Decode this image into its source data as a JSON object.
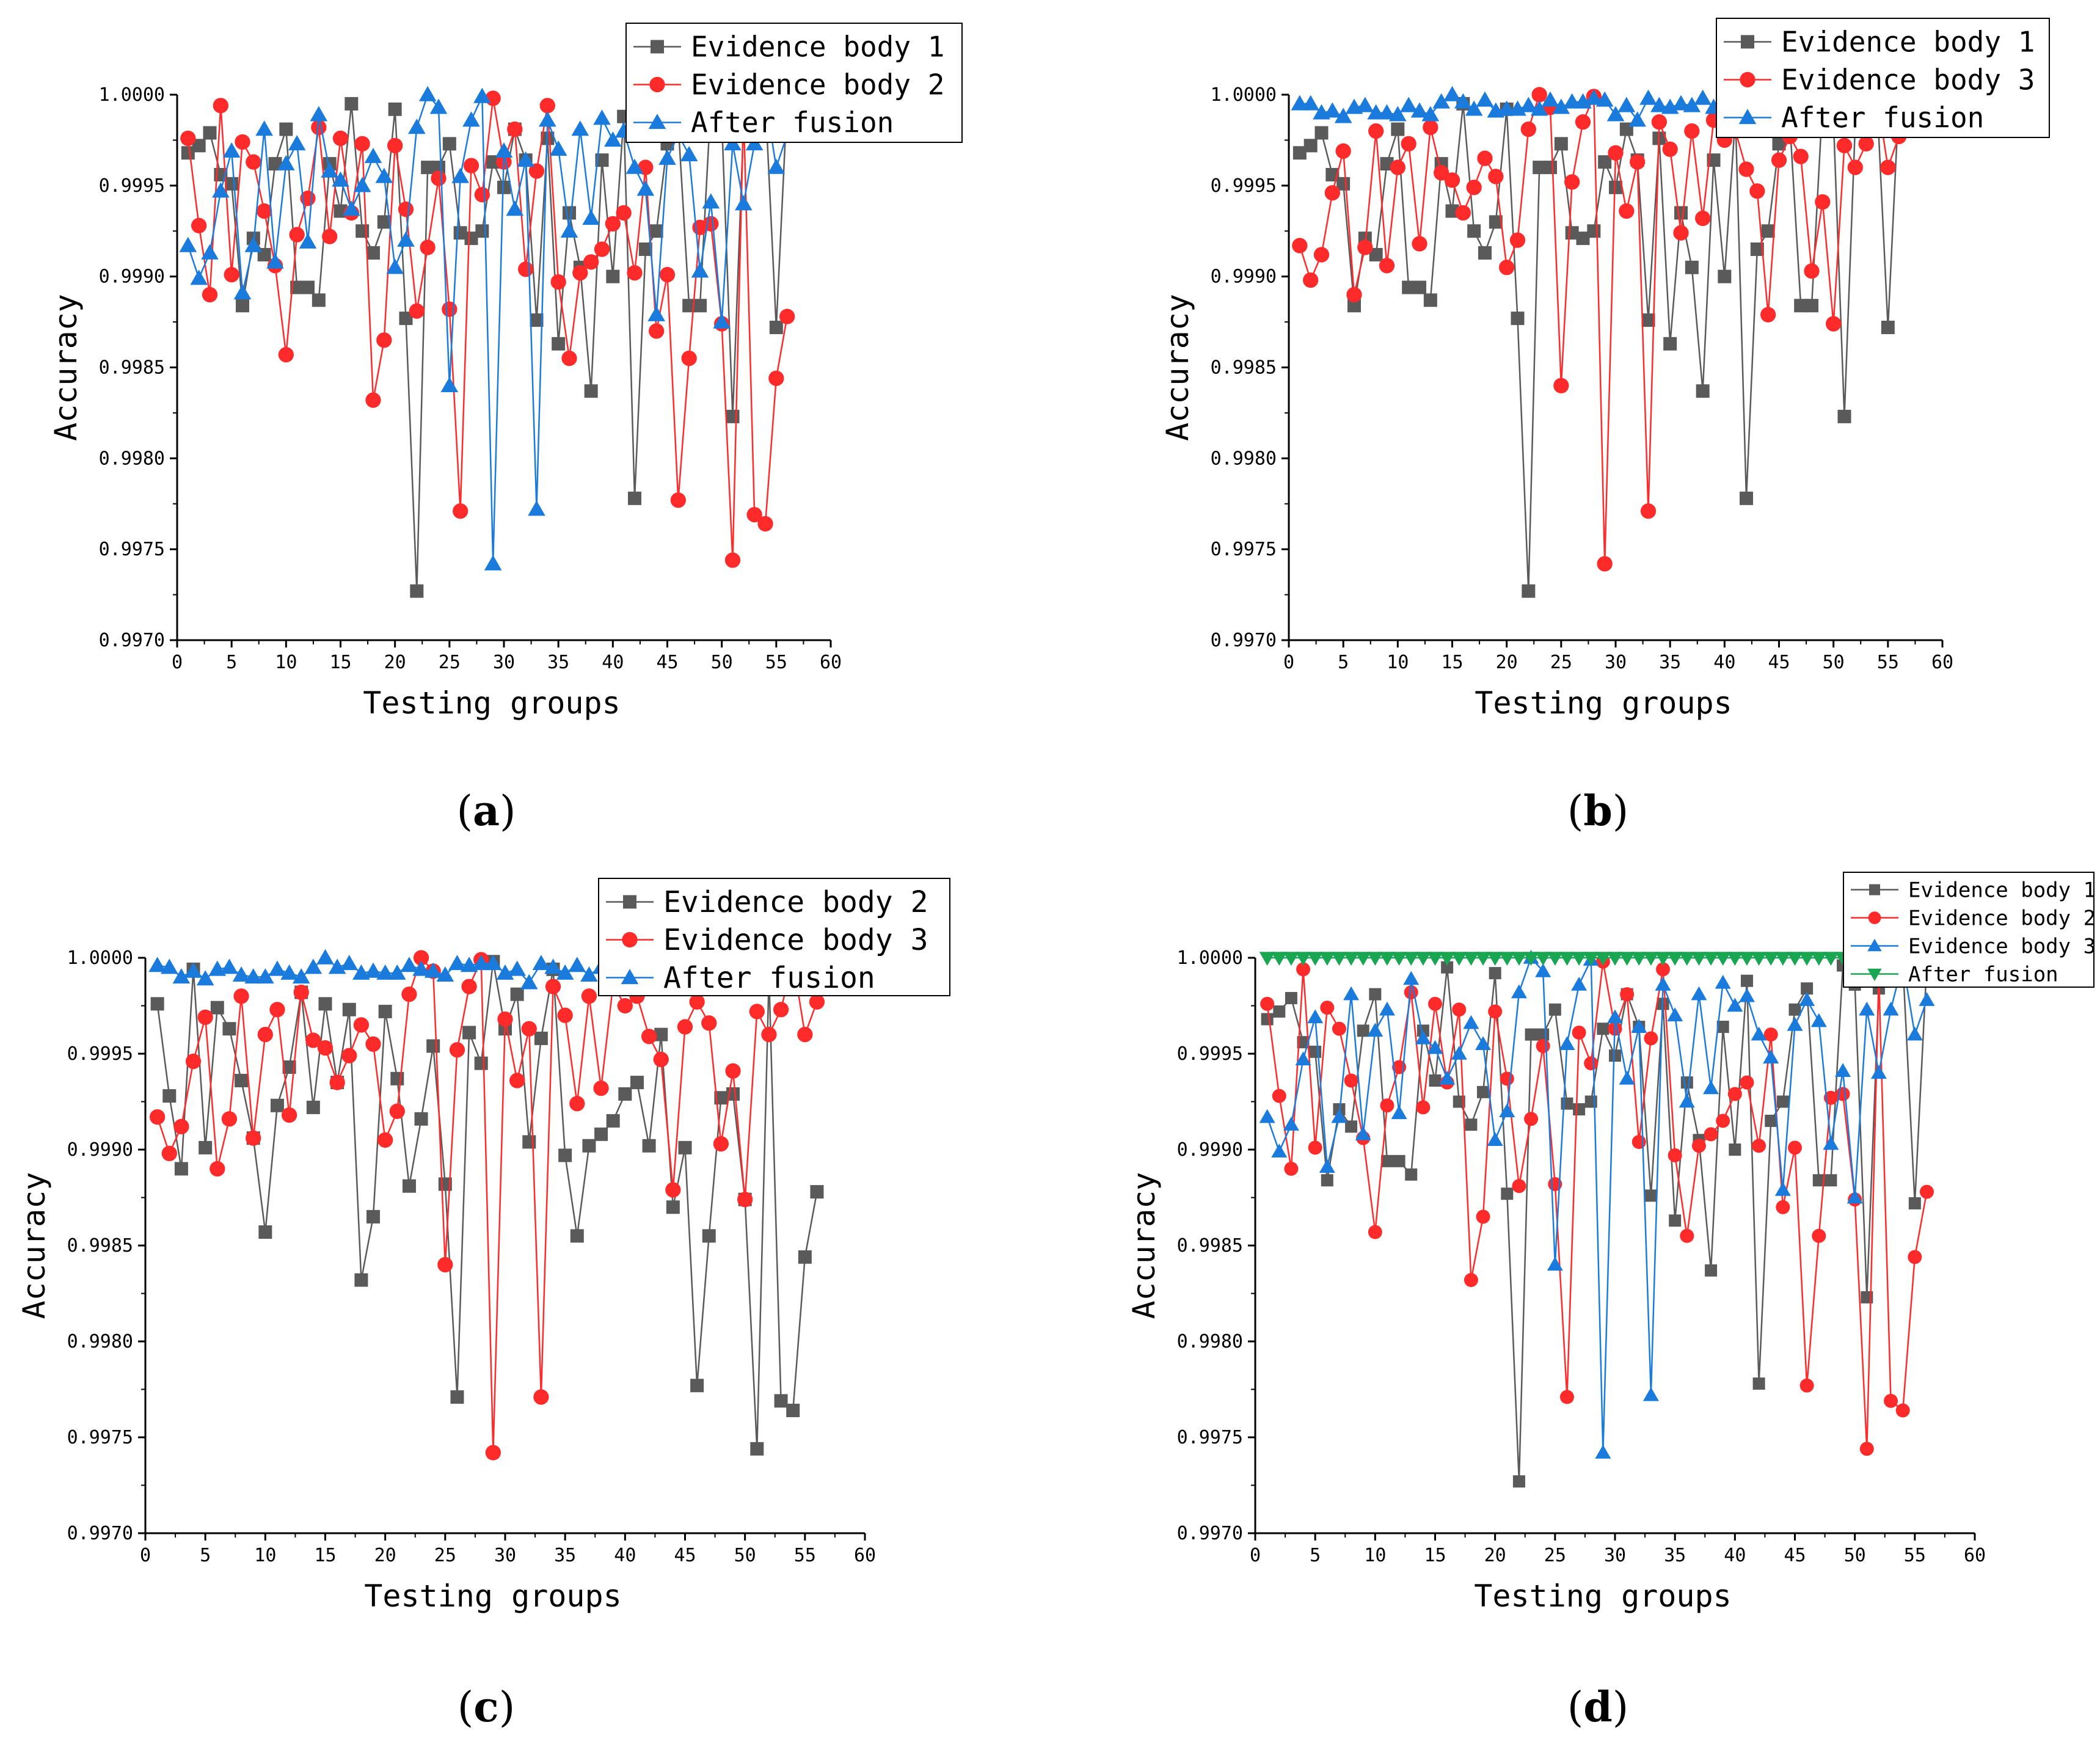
{
  "colors": {
    "gray": "#5a5a5a",
    "red": "#ff2a2a",
    "blue": "#1a7bdc",
    "green": "#1aa552",
    "axis": "#000000"
  },
  "captions": [
    "a",
    "b",
    "c",
    "d"
  ],
  "chart_data": [
    {
      "type": "line",
      "panel": "a",
      "xlabel": "Testing groups",
      "ylabel": "Accuracy",
      "xlim": [
        0,
        60
      ],
      "ylim": [
        0.997,
        1.0
      ],
      "xticks": [
        0,
        5,
        10,
        15,
        20,
        25,
        30,
        35,
        40,
        45,
        50,
        55,
        60
      ],
      "yticks": [
        "0.9970",
        "0.9975",
        "0.9980",
        "0.9985",
        "0.9990",
        "0.9995",
        "1.0000"
      ],
      "legend_position": "top-right",
      "series": [
        {
          "name": "Evidence body 1",
          "marker": "square",
          "color": "gray",
          "values": [
            0.99968,
            0.99972,
            0.99979,
            0.99956,
            0.99951,
            0.99884,
            0.99921,
            0.99912,
            0.99962,
            0.99981,
            0.99894,
            0.99894,
            0.99887,
            0.99962,
            0.99936,
            0.99995,
            0.99925,
            0.99913,
            0.9993,
            0.99992,
            0.99877,
            0.99727,
            0.9996,
            0.9996,
            0.99973,
            0.99924,
            0.99921,
            0.99925,
            0.99963,
            0.99949,
            0.99981,
            0.99964,
            0.99876,
            0.99976,
            0.99863,
            0.99935,
            0.99905,
            0.99837,
            0.99964,
            0.999,
            0.99988,
            0.99778,
            0.99915,
            0.99925,
            0.99973,
            0.99984,
            0.99884,
            0.99884,
            0.99996,
            0.99986,
            0.99823,
            0.99984,
            0.99996,
            0.99997,
            0.99872,
            0.99997
          ]
        },
        {
          "name": "Evidence body 2",
          "marker": "circle",
          "color": "red",
          "values": [
            0.99976,
            0.99928,
            0.9989,
            0.99994,
            0.99901,
            0.99974,
            0.99963,
            0.99936,
            0.99906,
            0.99857,
            0.99923,
            0.99943,
            0.99982,
            0.99922,
            0.99976,
            0.99935,
            0.99973,
            0.99832,
            0.99865,
            0.99972,
            0.99937,
            0.99881,
            0.99916,
            0.99954,
            0.99882,
            0.99771,
            0.99961,
            0.99945,
            0.99998,
            0.99963,
            0.99981,
            0.99904,
            0.99958,
            0.99994,
            0.99897,
            0.99855,
            0.99902,
            0.99908,
            0.99915,
            0.99929,
            0.99935,
            0.99902,
            0.9996,
            0.9987,
            0.99901,
            0.99777,
            0.99855,
            0.99927,
            0.99929,
            0.99874,
            0.99744,
            0.99991,
            0.99769,
            0.99764,
            0.99844,
            0.99878
          ]
        },
        {
          "name": "After fusion",
          "marker": "triangle",
          "color": "blue",
          "values": [
            0.99917,
            0.99899,
            0.99913,
            0.99947,
            0.99969,
            0.99891,
            0.99917,
            0.99981,
            0.99908,
            0.99962,
            0.99973,
            0.99919,
            0.99989,
            0.99958,
            0.99953,
            0.99937,
            0.9995,
            0.99966,
            0.99955,
            0.99905,
            0.9992,
            0.99982,
            1.0,
            0.99993,
            0.9984,
            0.99955,
            0.99986,
            0.99999,
            0.99742,
            0.99969,
            0.99937,
            0.99964,
            0.99772,
            0.99986,
            0.9997,
            0.99925,
            0.99981,
            0.99932,
            0.99987,
            0.99975,
            0.9998,
            0.9996,
            0.99948,
            0.99879,
            0.99965,
            0.99978,
            0.99967,
            0.99903,
            0.99941,
            0.99875,
            0.99973,
            0.9994,
            0.99973,
            0.99998,
            0.9996,
            0.99978
          ]
        }
      ]
    },
    {
      "type": "line",
      "panel": "b",
      "xlabel": "Testing groups",
      "ylabel": "Accuracy",
      "xlim": [
        0,
        60
      ],
      "ylim": [
        0.997,
        1.0
      ],
      "xticks": [
        0,
        5,
        10,
        15,
        20,
        25,
        30,
        35,
        40,
        45,
        50,
        55,
        60
      ],
      "yticks": [
        "0.9970",
        "0.9975",
        "0.9980",
        "0.9985",
        "0.9990",
        "0.9995",
        "1.0000"
      ],
      "legend_position": "top-right",
      "series": [
        {
          "name": "Evidence body 1",
          "marker": "square",
          "color": "gray",
          "values": [
            0.99968,
            0.99972,
            0.99979,
            0.99956,
            0.99951,
            0.99884,
            0.99921,
            0.99912,
            0.99962,
            0.99981,
            0.99894,
            0.99894,
            0.99887,
            0.99962,
            0.99936,
            0.99995,
            0.99925,
            0.99913,
            0.9993,
            0.99992,
            0.99877,
            0.99727,
            0.9996,
            0.9996,
            0.99973,
            0.99924,
            0.99921,
            0.99925,
            0.99963,
            0.99949,
            0.99981,
            0.99964,
            0.99876,
            0.99976,
            0.99863,
            0.99935,
            0.99905,
            0.99837,
            0.99964,
            0.999,
            0.99988,
            0.99778,
            0.99915,
            0.99925,
            0.99973,
            0.99984,
            0.99884,
            0.99884,
            0.99996,
            0.99986,
            0.99823,
            0.99984,
            0.99996,
            0.99997,
            0.99872,
            0.99997
          ]
        },
        {
          "name": "Evidence body 3",
          "marker": "circle",
          "color": "red",
          "values": [
            0.99917,
            0.99898,
            0.99912,
            0.99946,
            0.99969,
            0.9989,
            0.99916,
            0.9998,
            0.99906,
            0.9996,
            0.99973,
            0.99918,
            0.99982,
            0.99957,
            0.99953,
            0.99935,
            0.99949,
            0.99965,
            0.99955,
            0.99905,
            0.9992,
            0.99981,
            1.0,
            0.99993,
            0.9984,
            0.99952,
            0.99985,
            0.99999,
            0.99742,
            0.99968,
            0.99936,
            0.99963,
            0.99771,
            0.99985,
            0.9997,
            0.99924,
            0.9998,
            0.99932,
            0.99986,
            0.99975,
            0.9998,
            0.99959,
            0.99947,
            0.99879,
            0.99964,
            0.99977,
            0.99966,
            0.99903,
            0.99941,
            0.99874,
            0.99972,
            0.9996,
            0.99973,
            0.99999,
            0.9996,
            0.99977
          ]
        },
        {
          "name": "After fusion",
          "marker": "triangle",
          "color": "blue",
          "values": [
            0.99995,
            0.99995,
            0.9999,
            0.99991,
            0.99988,
            0.99993,
            0.99994,
            0.9999,
            0.9999,
            0.99989,
            0.99994,
            0.99991,
            0.99989,
            0.99996,
            1.0,
            0.99996,
            0.99992,
            0.99997,
            0.99991,
            0.99992,
            0.99992,
            0.99994,
            0.99992,
            0.99997,
            0.99993,
            0.99996,
            0.99996,
            0.99998,
            0.99997,
            0.99989,
            0.99994,
            0.99986,
            0.99998,
            0.99994,
            0.99993,
            0.99995,
            0.99994,
            0.99998,
            0.99993,
            0.99992,
            0.99995,
            0.99993,
            0.99994,
            0.99991,
            0.99993,
            0.99996,
            0.99995,
            0.99993,
            0.99995,
            0.99999,
            0.99992,
            0.99995,
            0.99993,
            0.99995,
            0.99993,
            0.9999
          ]
        }
      ]
    },
    {
      "type": "line",
      "panel": "c",
      "xlabel": "Testing groups",
      "ylabel": "Accuracy",
      "xlim": [
        0,
        60
      ],
      "ylim": [
        0.997,
        1.0
      ],
      "xticks": [
        0,
        5,
        10,
        15,
        20,
        25,
        30,
        35,
        40,
        45,
        50,
        55,
        60
      ],
      "yticks": [
        "0.9970",
        "0.9975",
        "0.9980",
        "0.9985",
        "0.9990",
        "0.9995",
        "1.0000"
      ],
      "legend_position": "top-right",
      "series": [
        {
          "name": "Evidence body 2",
          "marker": "square",
          "color": "gray",
          "values": [
            0.99976,
            0.99928,
            0.9989,
            0.99994,
            0.99901,
            0.99974,
            0.99963,
            0.99936,
            0.99906,
            0.99857,
            0.99923,
            0.99943,
            0.99982,
            0.99922,
            0.99976,
            0.99935,
            0.99973,
            0.99832,
            0.99865,
            0.99972,
            0.99937,
            0.99881,
            0.99916,
            0.99954,
            0.99882,
            0.99771,
            0.99961,
            0.99945,
            0.99998,
            0.99963,
            0.99981,
            0.99904,
            0.99958,
            0.99994,
            0.99897,
            0.99855,
            0.99902,
            0.99908,
            0.99915,
            0.99929,
            0.99935,
            0.99902,
            0.9996,
            0.9987,
            0.99901,
            0.99777,
            0.99855,
            0.99927,
            0.99929,
            0.99874,
            0.99744,
            0.99991,
            0.99769,
            0.99764,
            0.99844,
            0.99878
          ]
        },
        {
          "name": "Evidence body 3",
          "marker": "circle",
          "color": "red",
          "values": [
            0.99917,
            0.99898,
            0.99912,
            0.99946,
            0.99969,
            0.9989,
            0.99916,
            0.9998,
            0.99906,
            0.9996,
            0.99973,
            0.99918,
            0.99982,
            0.99957,
            0.99953,
            0.99935,
            0.99949,
            0.99965,
            0.99955,
            0.99905,
            0.9992,
            0.99981,
            1.0,
            0.99993,
            0.9984,
            0.99952,
            0.99985,
            0.99999,
            0.99742,
            0.99968,
            0.99936,
            0.99963,
            0.99771,
            0.99985,
            0.9997,
            0.99924,
            0.9998,
            0.99932,
            0.99986,
            0.99975,
            0.9998,
            0.99959,
            0.99947,
            0.99879,
            0.99964,
            0.99977,
            0.99966,
            0.99903,
            0.99941,
            0.99874,
            0.99972,
            0.9996,
            0.99973,
            0.99999,
            0.9996,
            0.99977
          ]
        },
        {
          "name": "After fusion",
          "marker": "triangle",
          "color": "blue",
          "values": [
            0.99996,
            0.99995,
            0.9999,
            0.99993,
            0.99989,
            0.99994,
            0.99995,
            0.99991,
            0.9999,
            0.9999,
            0.99994,
            0.99992,
            0.9999,
            0.99995,
            1.0,
            0.99995,
            0.99997,
            0.99992,
            0.99993,
            0.99992,
            0.99992,
            0.99996,
            0.99994,
            0.99993,
            0.99991,
            0.99997,
            0.99996,
            0.99997,
            0.99997,
            0.99992,
            0.99994,
            0.99987,
            0.99997,
            0.99995,
            0.99992,
            0.99996,
            0.99991,
            0.99995,
            0.99992,
            0.99994,
            0.99995,
            0.99992,
            0.99995,
            0.99994,
            0.99994,
            0.99994,
            0.99993,
            0.99991,
            0.99995,
            0.99999,
            0.99993,
            0.99996,
            0.99992,
            0.99995,
            0.99995,
            0.9999
          ]
        }
      ]
    },
    {
      "type": "line",
      "panel": "d",
      "xlabel": "Testing groups",
      "ylabel": "Accuracy",
      "xlim": [
        0,
        60
      ],
      "ylim": [
        0.997,
        1.0
      ],
      "xticks": [
        0,
        5,
        10,
        15,
        20,
        25,
        30,
        35,
        40,
        45,
        50,
        55,
        60
      ],
      "yticks": [
        "0.9970",
        "0.9975",
        "0.9980",
        "0.9985",
        "0.9990",
        "0.9995",
        "1.0000"
      ],
      "legend_position": "top-right",
      "series": [
        {
          "name": "Evidence body 1",
          "marker": "square",
          "color": "gray",
          "values": [
            0.99968,
            0.99972,
            0.99979,
            0.99956,
            0.99951,
            0.99884,
            0.99921,
            0.99912,
            0.99962,
            0.99981,
            0.99894,
            0.99894,
            0.99887,
            0.99962,
            0.99936,
            0.99995,
            0.99925,
            0.99913,
            0.9993,
            0.99992,
            0.99877,
            0.99727,
            0.9996,
            0.9996,
            0.99973,
            0.99924,
            0.99921,
            0.99925,
            0.99963,
            0.99949,
            0.99981,
            0.99964,
            0.99876,
            0.99976,
            0.99863,
            0.99935,
            0.99905,
            0.99837,
            0.99964,
            0.999,
            0.99988,
            0.99778,
            0.99915,
            0.99925,
            0.99973,
            0.99984,
            0.99884,
            0.99884,
            0.99996,
            0.99986,
            0.99823,
            0.99984,
            0.99996,
            0.99997,
            0.99872,
            0.99997
          ]
        },
        {
          "name": "Evidence body 2",
          "marker": "circle",
          "color": "red",
          "values": [
            0.99976,
            0.99928,
            0.9989,
            0.99994,
            0.99901,
            0.99974,
            0.99963,
            0.99936,
            0.99906,
            0.99857,
            0.99923,
            0.99943,
            0.99982,
            0.99922,
            0.99976,
            0.99935,
            0.99973,
            0.99832,
            0.99865,
            0.99972,
            0.99937,
            0.99881,
            0.99916,
            0.99954,
            0.99882,
            0.99771,
            0.99961,
            0.99945,
            0.99998,
            0.99963,
            0.99981,
            0.99904,
            0.99958,
            0.99994,
            0.99897,
            0.99855,
            0.99902,
            0.99908,
            0.99915,
            0.99929,
            0.99935,
            0.99902,
            0.9996,
            0.9987,
            0.99901,
            0.99777,
            0.99855,
            0.99927,
            0.99929,
            0.99874,
            0.99744,
            0.99991,
            0.99769,
            0.99764,
            0.99844,
            0.99878
          ]
        },
        {
          "name": "Evidence body 3",
          "marker": "triangle",
          "color": "blue",
          "values": [
            0.99917,
            0.99899,
            0.99913,
            0.99947,
            0.99969,
            0.99891,
            0.99917,
            0.99981,
            0.99908,
            0.99962,
            0.99973,
            0.99919,
            0.99989,
            0.99958,
            0.99953,
            0.99937,
            0.9995,
            0.99966,
            0.99955,
            0.99905,
            0.9992,
            0.99982,
            1.0,
            0.99993,
            0.9984,
            0.99955,
            0.99986,
            0.99999,
            0.99742,
            0.99969,
            0.99937,
            0.99964,
            0.99772,
            0.99986,
            0.9997,
            0.99925,
            0.99981,
            0.99932,
            0.99987,
            0.99975,
            0.9998,
            0.9996,
            0.99948,
            0.99879,
            0.99965,
            0.99978,
            0.99967,
            0.99903,
            0.99941,
            0.99875,
            0.99973,
            0.9994,
            0.99973,
            0.99998,
            0.9996,
            0.99978
          ]
        },
        {
          "name": "After fusion",
          "marker": "triangle-down",
          "color": "green",
          "values": [
            1.0,
            1.0,
            1.0,
            1.0,
            1.0,
            1.0,
            1.0,
            1.0,
            1.0,
            1.0,
            1.0,
            1.0,
            1.0,
            1.0,
            1.0,
            1.0,
            1.0,
            1.0,
            1.0,
            1.0,
            1.0,
            1.0,
            1.0,
            1.0,
            1.0,
            1.0,
            1.0,
            1.0,
            1.0,
            1.0,
            1.0,
            1.0,
            1.0,
            1.0,
            1.0,
            1.0,
            1.0,
            1.0,
            1.0,
            1.0,
            1.0,
            1.0,
            1.0,
            1.0,
            1.0,
            1.0,
            1.0,
            1.0,
            1.0,
            1.0,
            1.0,
            1.0,
            1.0,
            1.0,
            1.0,
            1.0
          ]
        }
      ]
    }
  ]
}
